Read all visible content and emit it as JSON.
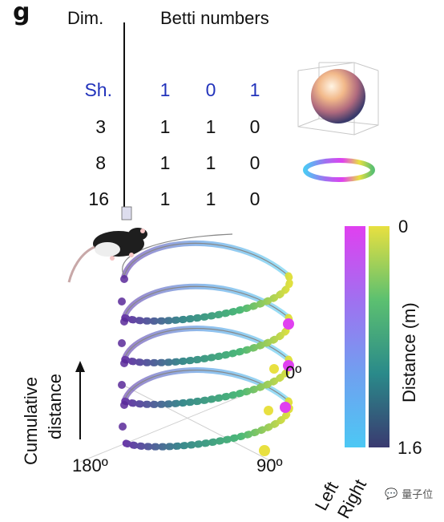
{
  "panel_label": "g",
  "table": {
    "col_dim": "Dim.",
    "col_betti": "Betti numbers",
    "rows": [
      {
        "dim": "Sh.",
        "betti": [
          "1",
          "0",
          "1"
        ],
        "color": "#2233bb"
      },
      {
        "dim": "3",
        "betti": [
          "1",
          "1",
          "0"
        ],
        "color": "#111111"
      },
      {
        "dim": "8",
        "betti": [
          "1",
          "1",
          "0"
        ],
        "color": "#111111"
      },
      {
        "dim": "16",
        "betti": [
          "1",
          "1",
          "0"
        ],
        "color": "#111111"
      }
    ]
  },
  "helix": {
    "angle_0": "0º",
    "angle_90": "90º",
    "angle_180": "180º",
    "ylabel_line1": "Cumulative",
    "ylabel_line2": "distance"
  },
  "colorbar": {
    "top_value": "0",
    "bottom_value": "1.6",
    "axis_label": "Distance (m)",
    "left_label": "Left",
    "right_label": "Right",
    "left_colors": [
      "#e040f0",
      "#a070f0",
      "#70a0f0",
      "#4cc8f4"
    ],
    "right_colors": [
      "#e8e040",
      "#5cc070",
      "#2a8a8a",
      "#3a3a70"
    ]
  },
  "watermark": "量子位"
}
